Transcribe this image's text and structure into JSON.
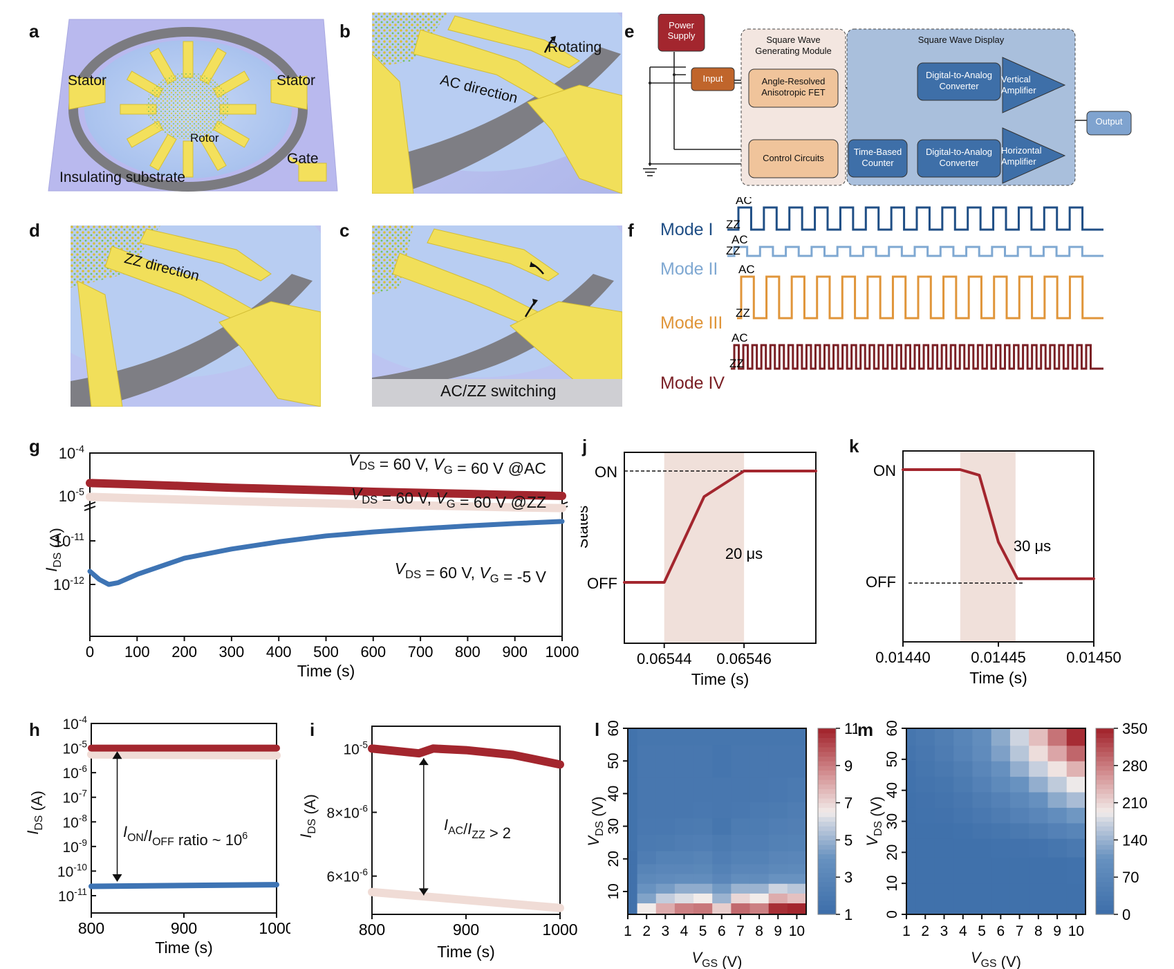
{
  "figure": {
    "panel_letters": [
      "a",
      "b",
      "e",
      "d",
      "c",
      "f",
      "g",
      "j",
      "k",
      "h",
      "i",
      "l",
      "m"
    ]
  },
  "panel_a": {
    "labels": {
      "stator_left": "Stator",
      "stator_right": "Stator",
      "rotor": "Rotor",
      "gate": "Gate",
      "substrate": "Insulating substrate"
    }
  },
  "panel_b": {
    "labels": {
      "rotating": "Rotating",
      "direction": "AC direction"
    }
  },
  "panel_d": {
    "labels": {
      "direction": "ZZ direction"
    }
  },
  "panel_c": {
    "labels": {
      "caption": "AC/ZZ switching"
    }
  },
  "panel_e": {
    "power_supply": "Power\nSupply",
    "input": "Input",
    "module_title": "Square Wave\nGenerating Module",
    "fet": "Angle-Resolved\nAnisotropic FET",
    "control": "Control Circuits",
    "display_title": "Square Wave Display",
    "dac_top": "Digital-to-Analog\nConverter",
    "dac_bottom": "Digital-to-Analog\nConverter",
    "counter": "Time-Based\nCounter",
    "vert_amp": "Vertical\nAmplifier",
    "horiz_amp": "Horizontal\nAmplifier",
    "output": "Output",
    "colors": {
      "power": "#a3262e",
      "input": "#c0652b",
      "module_bg": "#f3e6e0",
      "fet": "#f0c49b",
      "display_bg": "#a9bfdc",
      "block": "#3e6fa8",
      "output": "#7fa3cf"
    }
  },
  "panel_f": {
    "level_high": "AC",
    "level_low": "ZZ",
    "modes": [
      {
        "label": "Mode I",
        "color": "#1f4e85",
        "pulses": 14,
        "amplitude": "high"
      },
      {
        "label": "Mode II",
        "color": "#7fa8d2",
        "pulses": 14,
        "amplitude": "low"
      },
      {
        "label": "Mode III",
        "color": "#e0953a",
        "pulses": 14,
        "amplitude": "tall"
      },
      {
        "label": "Mode IV",
        "color": "#7a1f24",
        "pulses": 40,
        "amplitude": "high"
      }
    ]
  },
  "chart_data": [
    {
      "id": "g",
      "type": "scatter",
      "xlabel": "Time (s)",
      "ylabel": "I_DS (A)",
      "xlim": [
        0,
        1000
      ],
      "xticks": [
        "0",
        "100",
        "200",
        "300",
        "400",
        "500",
        "600",
        "700",
        "800",
        "900",
        "1000"
      ],
      "yscale": "log (broken axis)",
      "yticks_upper": [
        "10-4",
        "10-5"
      ],
      "yticks_lower": [
        "10-11",
        "10-12"
      ],
      "annotations": [
        "V_DS = 60 V, V_G = 60 V @AC",
        "V_DS = 60 V, V_G = 60 V @ZZ",
        "V_DS = 60 V, V_G = -5 V"
      ],
      "series": [
        {
          "name": "AC (V_G = 60 V)",
          "color": "#a3262e",
          "x": [
            0,
            100,
            200,
            300,
            400,
            500,
            600,
            700,
            800,
            900,
            1000
          ],
          "y": [
            2e-05,
            1.85e-05,
            1.7e-05,
            1.55e-05,
            1.45e-05,
            1.35e-05,
            1.25e-05,
            1.18e-05,
            1.12e-05,
            1.05e-05,
            1e-05
          ]
        },
        {
          "name": "ZZ (V_G = 60 V)",
          "color": "#f0dcd6",
          "x": [
            0,
            100,
            200,
            300,
            400,
            500,
            600,
            700,
            800,
            900,
            1000
          ],
          "y": [
            9.5e-06,
            8.8e-06,
            8.2e-06,
            7.6e-06,
            7.1e-06,
            6.7e-06,
            6.3e-06,
            6e-06,
            5.7e-06,
            5.4e-06,
            5.2e-06
          ]
        },
        {
          "name": "OFF (V_G = -5 V)",
          "color": "#3e74b4",
          "x": [
            0,
            20,
            40,
            60,
            100,
            200,
            300,
            400,
            500,
            600,
            700,
            800,
            900,
            1000
          ],
          "y": [
            2e-12,
            1.3e-12,
            1e-12,
            1.1e-12,
            1.7e-12,
            4e-12,
            6.5e-12,
            9.5e-12,
            1.3e-11,
            1.6e-11,
            1.9e-11,
            2.2e-11,
            2.5e-11,
            2.8e-11
          ]
        }
      ]
    },
    {
      "id": "j",
      "type": "line",
      "xlabel": "Time (s)",
      "ylabel": "States",
      "xlim": [
        0.06543,
        0.065478
      ],
      "xticks": [
        "0.06544",
        "0.06546"
      ],
      "yticks": [
        "OFF",
        "ON"
      ],
      "annotation": "20 μs",
      "shaded_region": [
        0.06544,
        0.06546
      ],
      "series": [
        {
          "name": "state",
          "color": "#a3262e",
          "x": [
            0.06543,
            0.06544,
            0.06545,
            0.06546,
            0.065478
          ],
          "y": [
            0,
            0,
            0.77,
            1,
            1
          ]
        }
      ]
    },
    {
      "id": "k",
      "type": "line",
      "xlabel": "Time (s)",
      "ylabel": "",
      "xlim": [
        0.0144,
        0.0145
      ],
      "xticks": [
        "0.01440",
        "0.01445",
        "0.01450"
      ],
      "yticks": [
        "OFF",
        "ON"
      ],
      "annotation": "30 μs",
      "shaded_region": [
        0.01443,
        0.014459
      ],
      "series": [
        {
          "name": "state",
          "color": "#a3262e",
          "x": [
            0.0144,
            0.01443,
            0.01444,
            0.01445,
            0.01446,
            0.0145
          ],
          "y": [
            1,
            1,
            0.95,
            0.35,
            0.02,
            0.02
          ]
        }
      ]
    },
    {
      "id": "h",
      "type": "scatter",
      "xlabel": "Time (s)",
      "ylabel": "I_DS (A)",
      "xlim": [
        800,
        1000
      ],
      "xticks": [
        "800",
        "900",
        "1000"
      ],
      "yscale": "log",
      "ylim_exp": [
        -11.3,
        -4
      ],
      "yticks": [
        "10-4",
        "10-5",
        "10-6",
        "10-7",
        "10-8",
        "10-9",
        "10-10",
        "10-11"
      ],
      "annotation": "I_ON/I_OFF ratio ~ 10^6",
      "series": [
        {
          "name": "AC",
          "color": "#a3262e",
          "x": [
            800,
            1000
          ],
          "y": [
            1e-05,
            1e-05
          ]
        },
        {
          "name": "ZZ",
          "color": "#f0dcd6",
          "x": [
            800,
            1000
          ],
          "y": [
            5.5e-06,
            5e-06
          ]
        },
        {
          "name": "OFF",
          "color": "#3e74b4",
          "x": [
            800,
            1000
          ],
          "y": [
            2.4e-11,
            2.8e-11
          ]
        }
      ]
    },
    {
      "id": "i",
      "type": "scatter",
      "xlabel": "Time (s)",
      "ylabel": "I_DS (A)",
      "xlim": [
        800,
        1000
      ],
      "xticks": [
        "800",
        "900",
        "1000"
      ],
      "ylim": [
        4.8e-06,
        1.07e-05
      ],
      "yticks": [
        "6×10-6",
        "8×10-6",
        "10-5"
      ],
      "annotation": "I_AC/I_ZZ > 2",
      "series": [
        {
          "name": "AC",
          "color": "#a3262e",
          "x": [
            800,
            850,
            865,
            900,
            950,
            1000
          ],
          "y": [
            1e-05,
            9.85e-06,
            1e-05,
            9.95e-06,
            9.8e-06,
            9.5e-06
          ]
        },
        {
          "name": "ZZ",
          "color": "#f0dcd6",
          "x": [
            800,
            900,
            1000
          ],
          "y": [
            5.5e-06,
            5.25e-06,
            5e-06
          ]
        }
      ]
    },
    {
      "id": "l",
      "type": "heatmap",
      "xlabel": "V_GS (V)",
      "ylabel": "V_DS (V)",
      "x": [
        1,
        2,
        3,
        4,
        5,
        6,
        7,
        8,
        9,
        10
      ],
      "xticks": [
        "1",
        "2",
        "3",
        "4",
        "5",
        "6",
        "7",
        "8",
        "9",
        "10"
      ],
      "yticks": [
        "10",
        "20",
        "30",
        "40",
        "50",
        "60"
      ],
      "ylim": [
        3,
        60
      ],
      "colorbar": {
        "min": 1,
        "max": 11,
        "ticks": [
          "1",
          "3",
          "5",
          "7",
          "9",
          "11"
        ]
      },
      "rows_vds": [
        5,
        8,
        11,
        14,
        17,
        20,
        25,
        30,
        35,
        40,
        50,
        60
      ],
      "z": [
        [
          1.2,
          6.5,
          8.0,
          9.0,
          9.2,
          7.2,
          9.5,
          9.0,
          10.8,
          11.0
        ],
        [
          1.2,
          4.5,
          5.8,
          6.2,
          6.5,
          5.0,
          7.0,
          6.5,
          8.0,
          7.5
        ],
        [
          1.2,
          4.0,
          4.3,
          4.8,
          4.8,
          4.2,
          5.0,
          5.0,
          6.0,
          5.6
        ],
        [
          1.2,
          3.2,
          3.4,
          3.6,
          3.6,
          3.0,
          3.6,
          3.5,
          4.0,
          4.0
        ],
        [
          1.2,
          2.8,
          3.0,
          3.0,
          3.1,
          2.6,
          3.0,
          3.0,
          3.2,
          3.3
        ],
        [
          1.2,
          2.2,
          2.6,
          2.6,
          2.8,
          2.3,
          2.6,
          2.6,
          2.9,
          3.0
        ],
        [
          1.3,
          1.9,
          2.0,
          2.2,
          2.3,
          2.0,
          2.3,
          2.3,
          2.5,
          2.6
        ],
        [
          1.3,
          1.8,
          1.8,
          1.9,
          2.0,
          1.6,
          2.1,
          2.1,
          2.3,
          2.4
        ],
        [
          1.3,
          1.7,
          1.7,
          1.7,
          1.8,
          1.7,
          1.8,
          1.9,
          2.0,
          2.2
        ],
        [
          1.3,
          1.7,
          1.7,
          1.7,
          1.7,
          1.7,
          1.7,
          1.7,
          1.8,
          1.9
        ],
        [
          1.3,
          1.7,
          1.7,
          1.7,
          1.7,
          1.5,
          1.7,
          1.7,
          1.7,
          1.7
        ],
        [
          1.3,
          1.6,
          1.6,
          1.6,
          1.6,
          1.6,
          1.6,
          1.6,
          1.6,
          1.6
        ]
      ]
    },
    {
      "id": "m",
      "type": "heatmap",
      "xlabel": "V_GS (V)",
      "ylabel": "V_DS (V)",
      "x": [
        1,
        2,
        3,
        4,
        5,
        6,
        7,
        8,
        9,
        10
      ],
      "xticks": [
        "1",
        "2",
        "3",
        "4",
        "5",
        "6",
        "7",
        "8",
        "9",
        "10"
      ],
      "yticks": [
        "0",
        "10",
        "20",
        "30",
        "40",
        "50",
        "60"
      ],
      "ylim": [
        0,
        60
      ],
      "colorbar": {
        "min": 0,
        "max": 350,
        "ticks": [
          "0",
          "70",
          "140",
          "210",
          "280",
          "350"
        ]
      },
      "rows_vds": [
        5,
        15,
        22,
        27,
        32,
        37,
        42,
        47,
        52,
        57
      ],
      "z": [
        [
          5,
          5,
          5,
          5,
          5,
          5,
          5,
          5,
          5,
          5
        ],
        [
          5,
          5,
          5,
          5,
          5,
          5,
          5,
          5,
          5,
          8
        ],
        [
          5,
          5,
          5,
          5,
          5,
          8,
          10,
          12,
          20,
          30
        ],
        [
          5,
          5,
          5,
          8,
          15,
          20,
          30,
          40,
          55,
          65
        ],
        [
          5,
          8,
          10,
          18,
          28,
          40,
          55,
          70,
          90,
          110
        ],
        [
          5,
          10,
          15,
          25,
          40,
          55,
          75,
          100,
          130,
          150
        ],
        [
          8,
          15,
          20,
          35,
          55,
          80,
          105,
          135,
          165,
          190
        ],
        [
          10,
          20,
          30,
          45,
          70,
          100,
          135,
          170,
          200,
          240
        ],
        [
          15,
          25,
          40,
          60,
          85,
          120,
          160,
          205,
          250,
          300
        ],
        [
          20,
          30,
          45,
          65,
          90,
          130,
          175,
          230,
          290,
          345
        ]
      ]
    }
  ]
}
